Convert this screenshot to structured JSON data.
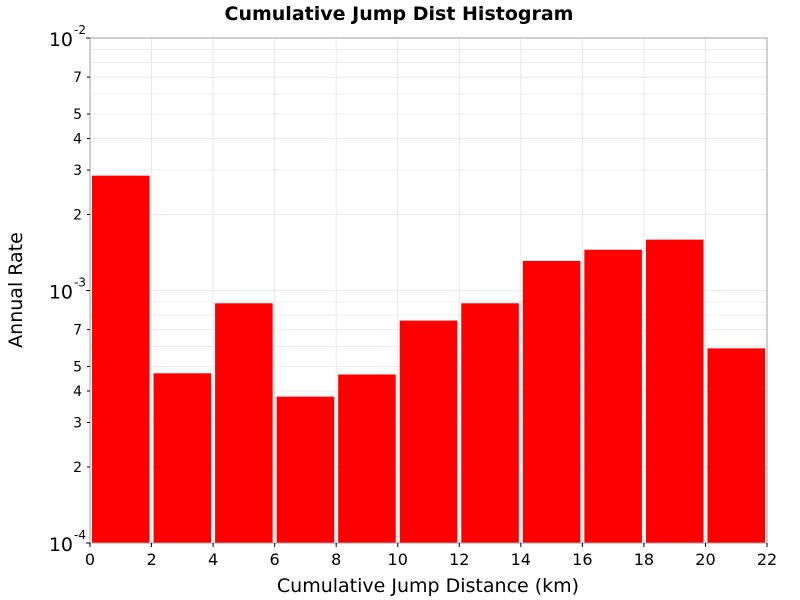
{
  "chart_data": {
    "type": "bar",
    "title": "Cumulative Jump Dist Histogram",
    "xlabel": "Cumulative Jump Distance (km)",
    "ylabel": "Annual Rate",
    "x_ticks": [
      0,
      2,
      4,
      6,
      8,
      10,
      12,
      14,
      16,
      18,
      20,
      22
    ],
    "xlim": [
      0,
      22
    ],
    "y_scale": "log",
    "ylim": [
      0.0001,
      0.01
    ],
    "y_major_ticks": [
      {
        "value": 0.0001,
        "base": "10",
        "exp": "-4"
      },
      {
        "value": 0.001,
        "base": "10",
        "exp": "-3"
      },
      {
        "value": 0.01,
        "base": "10",
        "exp": "-2"
      }
    ],
    "y_minor_labels": [
      {
        "value": 0.0002,
        "label": "2"
      },
      {
        "value": 0.0003,
        "label": "3"
      },
      {
        "value": 0.0004,
        "label": "4"
      },
      {
        "value": 0.0005,
        "label": "5"
      },
      {
        "value": 0.0007,
        "label": "7"
      },
      {
        "value": 0.002,
        "label": "2"
      },
      {
        "value": 0.003,
        "label": "3"
      },
      {
        "value": 0.004,
        "label": "4"
      },
      {
        "value": 0.005,
        "label": "5"
      },
      {
        "value": 0.007,
        "label": "7"
      }
    ],
    "grid": true,
    "bar_color": "#ff0000",
    "bars": [
      {
        "x0": 0,
        "x1": 2,
        "value": 0.00285
      },
      {
        "x0": 2,
        "x1": 4,
        "value": 0.00047
      },
      {
        "x0": 4,
        "x1": 6,
        "value": 0.00089
      },
      {
        "x0": 6,
        "x1": 8,
        "value": 0.00038
      },
      {
        "x0": 8,
        "x1": 10,
        "value": 0.000465
      },
      {
        "x0": 10,
        "x1": 12,
        "value": 0.00076
      },
      {
        "x0": 12,
        "x1": 14,
        "value": 0.00089
      },
      {
        "x0": 14,
        "x1": 16,
        "value": 0.00131
      },
      {
        "x0": 16,
        "x1": 18,
        "value": 0.00145
      },
      {
        "x0": 18,
        "x1": 20,
        "value": 0.00159
      },
      {
        "x0": 20,
        "x1": 22,
        "value": 0.00059
      }
    ]
  }
}
